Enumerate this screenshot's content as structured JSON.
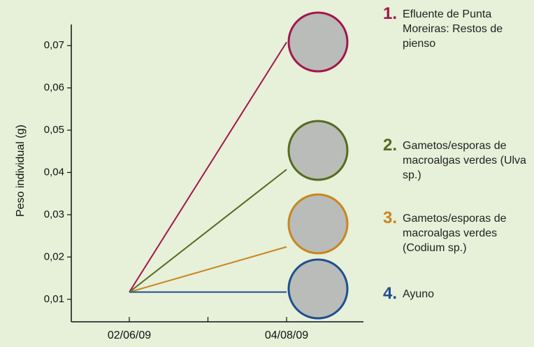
{
  "chart_data": {
    "type": "line",
    "y_label": "Peso individual (g)",
    "categories": [
      "02/06/09",
      "04/08/09"
    ],
    "series": [
      {
        "name": "Efluente de Punta Moreiras: Restos de pienso",
        "number": "1.",
        "color": "#a3164c",
        "values": [
          0.0117,
          0.0708
        ]
      },
      {
        "name": "Gametos/esporas de macroalgas verdes (Ulva sp.)",
        "number": "2.",
        "color": "#566b1f",
        "values": [
          0.0117,
          0.0407
        ]
      },
      {
        "name": "Gametos/esporas de macroalgas verdes (Codium sp.)",
        "number": "3.",
        "color": "#c98520",
        "values": [
          0.0117,
          0.0224
        ]
      },
      {
        "name": "Ayuno",
        "number": "4.",
        "color": "#1f4f8f",
        "values": [
          0.0117,
          0.0117
        ]
      }
    ],
    "ylim": [
      0.005,
      0.075
    ],
    "yticks": [
      {
        "value": 0.01,
        "label": "0,01"
      },
      {
        "value": 0.02,
        "label": "0,02"
      },
      {
        "value": 0.03,
        "label": "0,03"
      },
      {
        "value": 0.04,
        "label": "0,04"
      },
      {
        "value": 0.05,
        "label": "0,05"
      },
      {
        "value": 0.06,
        "label": "0,06"
      },
      {
        "value": 0.07,
        "label": "0,07"
      }
    ]
  }
}
